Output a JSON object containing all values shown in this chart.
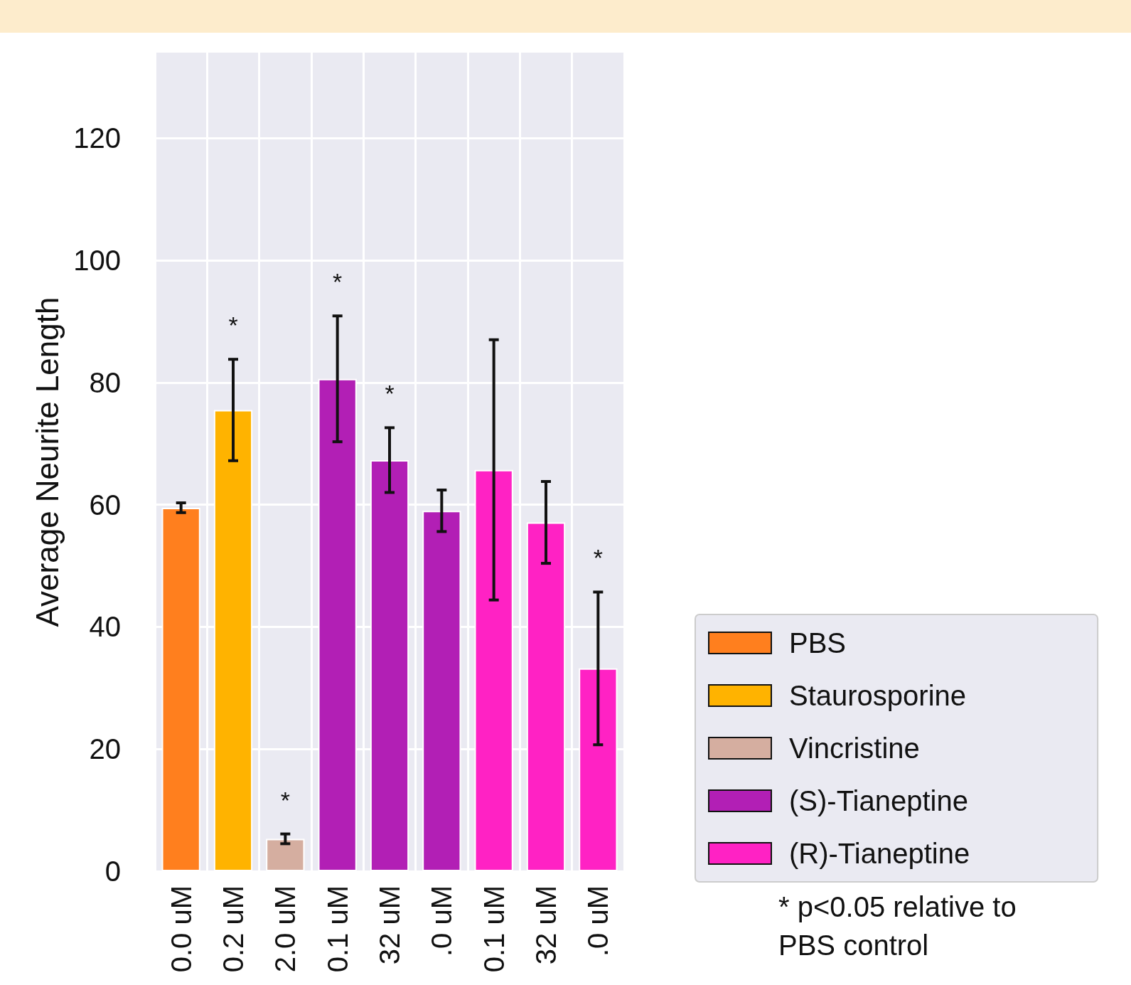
{
  "chart_data": {
    "type": "bar",
    "ylabel": "Average Neurite Length",
    "categories": [
      "0.0 uM",
      "0.2 uM",
      "2.0 uM",
      "0.1 uM",
      "32 uM",
      ".0 uM",
      "0.1 uM",
      "32 uM",
      ".0 uM"
    ],
    "series": [
      {
        "name": "PBS",
        "color": "#ff7f1e",
        "values": [
          59.5,
          null,
          null,
          null,
          null,
          null,
          null,
          null,
          null
        ],
        "errors": [
          0.8,
          null,
          null,
          null,
          null,
          null,
          null,
          null,
          null
        ]
      },
      {
        "name": "Staurosporine",
        "color": "#ffb300",
        "values": [
          null,
          75.5,
          null,
          null,
          null,
          null,
          null,
          null,
          null
        ],
        "errors": [
          null,
          8.3,
          null,
          null,
          null,
          null,
          null,
          null,
          null
        ]
      },
      {
        "name": "Vincristine",
        "color": "#d5aea0",
        "values": [
          null,
          null,
          5.3,
          null,
          null,
          null,
          null,
          null,
          null
        ],
        "errors": [
          null,
          null,
          0.8,
          null,
          null,
          null,
          null,
          null,
          null
        ]
      },
      {
        "name": "(S)-Tianeptine",
        "color": "#b21fb5",
        "values": [
          null,
          null,
          null,
          80.6,
          67.3,
          59.0,
          null,
          null,
          null
        ],
        "errors": [
          null,
          null,
          null,
          10.3,
          5.3,
          3.4,
          null,
          null,
          null
        ]
      },
      {
        "name": "(R)-Tianeptine",
        "color": "#ff22c4",
        "values": [
          null,
          null,
          null,
          null,
          null,
          null,
          65.7,
          57.1,
          33.2
        ],
        "errors": [
          null,
          null,
          null,
          null,
          null,
          null,
          21.3,
          6.7,
          12.5
        ]
      }
    ],
    "ylim": [
      0,
      134
    ],
    "yticks": [
      0,
      20,
      40,
      60,
      80,
      100,
      120
    ],
    "grid": true,
    "legend": "right",
    "annotations": [
      {
        "text": "*",
        "x": "0.2 uM",
        "y": 83.8
      },
      {
        "text": "*",
        "x": "2.0 uM",
        "y": 6.1
      },
      {
        "text": "*",
        "x": "0.1 uM",
        "y": 90.9
      },
      {
        "text": "*",
        "x": "32 uM",
        "y": 72.6
      },
      {
        "text": "*",
        "y": 45.7
      },
      "* p<0.05 relative to PBS control"
    ]
  }
}
